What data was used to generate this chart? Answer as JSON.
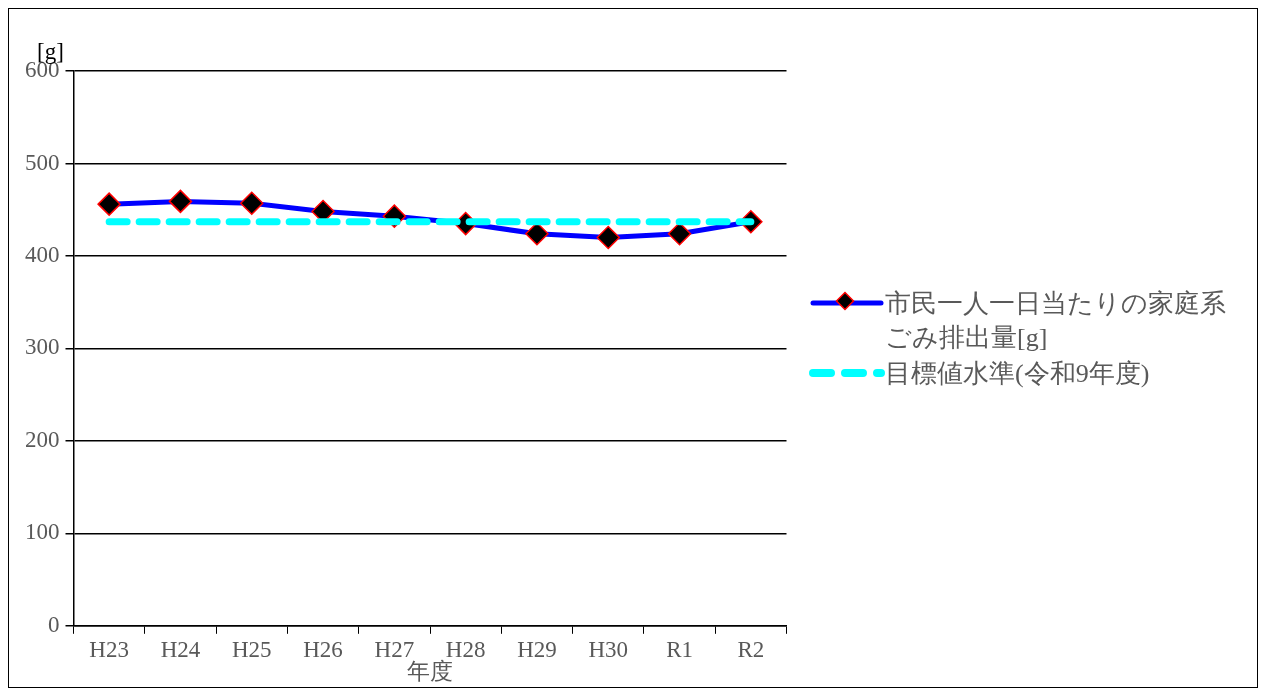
{
  "chart_data": {
    "type": "line",
    "ylabel": "[g]",
    "xlabel": "年度",
    "categories": [
      "H23",
      "H24",
      "H25",
      "H26",
      "H27",
      "H28",
      "H29",
      "H30",
      "R1",
      "R2"
    ],
    "series": [
      {
        "name": "市民一人一日当たりの家庭系ごみ排出量[g]",
        "color": "#0000ff",
        "marker": "diamond",
        "line_style": "solid",
        "values": [
          456,
          459,
          457,
          448,
          443,
          435,
          424,
          420,
          424,
          437
        ]
      },
      {
        "name": "目標値水準(令和9年度)",
        "color": "#00ffff",
        "marker": "none",
        "line_style": "dashed",
        "values": [
          437,
          437,
          437,
          437,
          437,
          437,
          437,
          437,
          437,
          437
        ]
      }
    ],
    "ylim": [
      0,
      600
    ],
    "yticks": [
      0,
      100,
      200,
      300,
      400,
      500,
      600
    ],
    "grid": "y",
    "legend": "right"
  }
}
